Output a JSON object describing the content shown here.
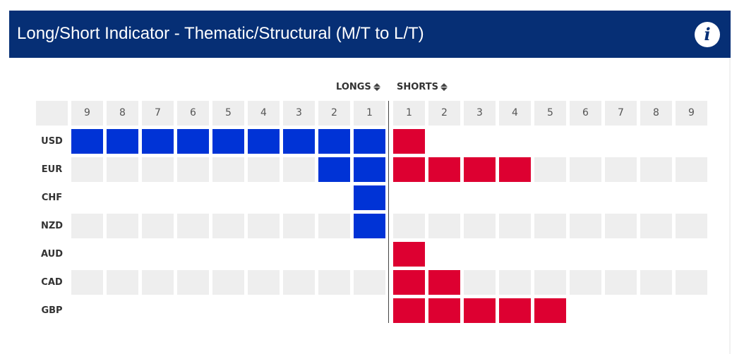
{
  "header": {
    "title": "Long/Short Indicator - Thematic/Structural (M/T to L/T)",
    "info_icon": "info-icon",
    "info_glyph": "i",
    "color": "#062f75"
  },
  "columns": {
    "longs_label": "LONGS",
    "shorts_label": "SHORTS",
    "sort_icon": "sort-icon",
    "long_ticks": [
      "9",
      "8",
      "7",
      "6",
      "5",
      "4",
      "3",
      "2",
      "1"
    ],
    "short_ticks": [
      "1",
      "2",
      "3",
      "4",
      "5",
      "6",
      "7",
      "8",
      "9"
    ]
  },
  "colors": {
    "long": "#0033d6",
    "short": "#dd0031",
    "empty": "#eeeeee"
  },
  "chart_data": {
    "type": "bar",
    "title": "Long/Short Indicator - Thematic/Structural (M/T to L/T)",
    "orientation": "horizontal-diverging",
    "scale_max": 9,
    "categories": [
      "USD",
      "EUR",
      "CHF",
      "NZD",
      "AUD",
      "CAD",
      "GBP"
    ],
    "series": [
      {
        "name": "LONGS",
        "values": [
          9,
          2,
          1,
          1,
          0,
          0,
          0
        ]
      },
      {
        "name": "SHORTS",
        "values": [
          1,
          4,
          0,
          0,
          1,
          2,
          5
        ]
      }
    ]
  }
}
